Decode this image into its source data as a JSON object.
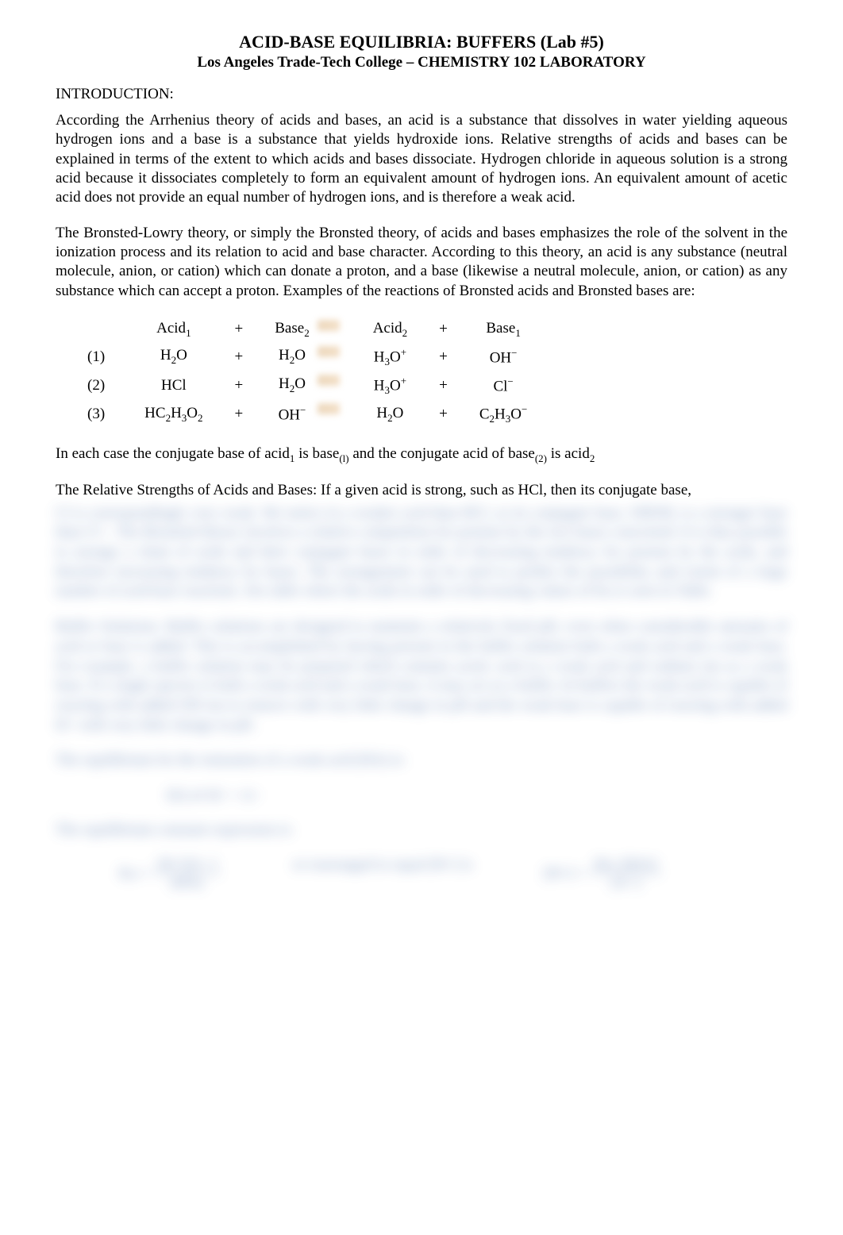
{
  "header": {
    "title": "ACID-BASE EQUILIBRIA: BUFFERS (Lab #5)",
    "subtitle": "Los Angeles Trade-Tech College – CHEMISTRY 102 LABORATORY"
  },
  "section_intro_heading": "INTRODUCTION:",
  "para1": "According the Arrhenius theory of acids and bases, an acid is a substance that dissolves in water yielding aqueous hydrogen ions and a base is a substance that yields hydroxide ions.  Relative strengths of acids and bases can be explained in terms of the extent to which acids and bases dissociate.  Hydrogen chloride in aqueous solution is a strong acid because it dissociates completely to form an equivalent amount of hydrogen ions.  An equivalent amount of acetic acid does not provide an equal number of hydrogen ions, and is therefore a weak acid.",
  "para2": "The Bronsted-Lowry theory, or simply the Bronsted theory, of acids and bases emphasizes the role of the solvent in the ionization process and its relation to acid and base character.  According to this theory, an acid is any substance (neutral molecule, anion, or cation) which can donate a proton, and a base (likewise a neutral molecule, anion, or cation) as any substance which can accept a proton.  Examples of the reactions of Bronsted acids and Bronsted bases are:",
  "reactions": {
    "header": {
      "c1": "Acid",
      "c1s": "1",
      "c2": "+",
      "c3": "Base",
      "c3s": "2",
      "c5": "Acid",
      "c5s": "2",
      "c6": "+",
      "c7": "Base",
      "c7s": "1"
    },
    "rows": [
      {
        "n": "(1)",
        "a1": "H",
        "a1s": "2",
        "a1t": "O",
        "plus1": "+",
        "b2": "H",
        "b2s": "2",
        "b2t": "O",
        "r1": "H",
        "r1s": "3",
        "r1t": "O",
        "r1sup": "+",
        "plus2": "+",
        "r2": "OH",
        "r2sup": "−"
      },
      {
        "n": "(2)",
        "a1": "HCl",
        "a1s": "",
        "a1t": "",
        "plus1": "+",
        "b2": "H",
        "b2s": "2",
        "b2t": "O",
        "r1": "H",
        "r1s": "3",
        "r1t": "O",
        "r1sup": "+",
        "plus2": "+",
        "r2": "Cl",
        "r2sup": "−"
      },
      {
        "n": "(3)",
        "a1": "HC",
        "a1s": "2",
        "a1t": "H",
        "a1s2": "3",
        "a1t2": "O",
        "a1s3": "2",
        "plus1": "+",
        "b2": "OH",
        "b2sup": "−",
        "r1": "H",
        "r1s": "2",
        "r1t": "O",
        "r1sup": "",
        "plus2": "+",
        "r2": "C",
        "r2s": "2",
        "r2t": "H",
        "r2s2": "3",
        "r2t2": "O",
        "r2sup": "−"
      }
    ]
  },
  "para3_a": "In each case the conjugate base of acid",
  "para3_b": " is base",
  "para3_c": " and the conjugate acid of base",
  "para3_d": " is acid",
  "para4": "The Relative Strengths of Acids and Bases:  If a given acid is strong, such as HCl, then its conjugate base,",
  "blurred": {
    "bp1": "Cl is correspondingly very weak. We notice in a weaker acid than HCl, so its conjugate base, OHOH, is a stronger base than Cl−. The Bronsted theory involves a relative competition for protons by the two bases concerned. It is thus possible to arrange a chain of acids and their conjugate bases in order of decreasing tendency for protons by the acids, and therefore increasing tendency by bases. The arrangement can be used to predict the possibility and extent of a large number of acid-base reactions. See table where the acids in order of decreasing values of Ka is seen in Table.",
    "bp2": "Buffer Solutions:  Buffer solutions are designed to maintain a relatively fixed pH, even when considerable amounts of acid or base is added. This is accomplished by having present in the buffer solution both a weak acid and a weak base. For example, a buffer solution may be prepared which contains acetic acid as a weak acid and sodium ion as a weak base. If a single species is both a weak acid and a weak base, it may act as a buffer. In buffers the weak acid is capable of reacting with added OH ion to remove with very little change in pH and the weak base is capable of reacting with added H+ with very little change in pH.",
    "bp3": "The equilibrium for the ionization of a weak acid (HA) is:",
    "eq1": "HA   ⇌   H+  +  A−",
    "bp4": "The equilibrium constant expression is:",
    "eq2a_lhs": "Ka =",
    "eq2a_top": "[H+][A−]",
    "eq2a_bot": "[HA]",
    "eq2a_mid": "or rearranged to equal [H+] is",
    "eq2b_lhs": "[H+] =",
    "eq2b_top": "[Ka ][HA]",
    "eq2b_bot": "[A−]"
  }
}
